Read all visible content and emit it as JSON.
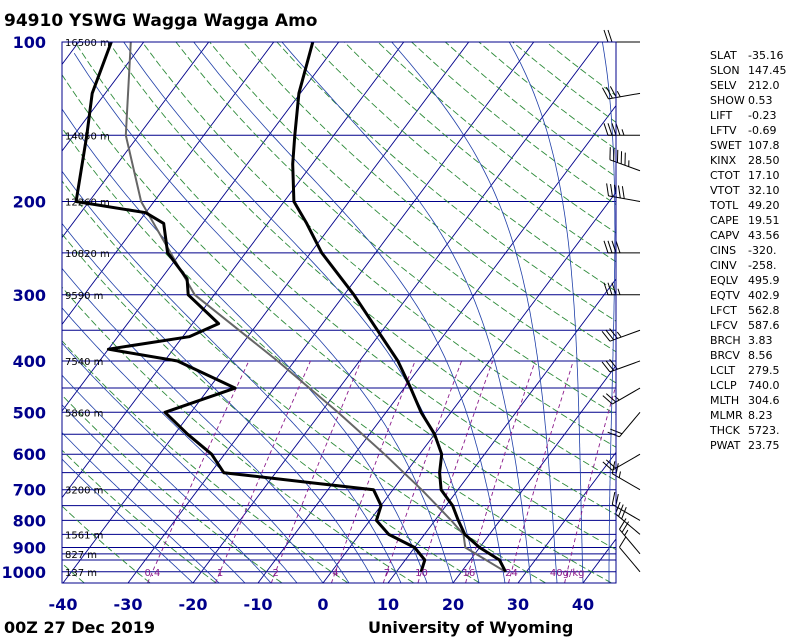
{
  "chart_data": {
    "type": "skewt",
    "title": "94910 YSWG Wagga Wagga Amo",
    "footer_left": "00Z 27 Dec 2019",
    "footer_right": "University of Wyoming",
    "x_ticks": [
      -40,
      -30,
      -20,
      -10,
      0,
      10,
      20,
      30,
      40
    ],
    "p_ticks": [
      100,
      200,
      300,
      400,
      500,
      600,
      700,
      800,
      900,
      1000
    ],
    "height_labels": [
      {
        "p": 100,
        "label": "16500 m"
      },
      {
        "p": 150,
        "label": "14050 m"
      },
      {
        "p": 200,
        "label": "12260 m"
      },
      {
        "p": 250,
        "label": "10820 m"
      },
      {
        "p": 300,
        "label": "9590 m"
      },
      {
        "p": 400,
        "label": "7540 m"
      },
      {
        "p": 500,
        "label": "5860 m"
      },
      {
        "p": 700,
        "label": "3200 m"
      },
      {
        "p": 850,
        "label": "1561 m"
      },
      {
        "p": 925,
        "label": "827 m"
      },
      {
        "p": 1000,
        "label": "137 m"
      }
    ],
    "mixing_ratio_labels": [
      "0.4",
      "1",
      "2",
      "4",
      "7",
      "10",
      "16",
      "24",
      "40g/kg"
    ],
    "temperature": [
      {
        "p": 1000,
        "t": 26.8
      },
      {
        "p": 950,
        "t": 24.5
      },
      {
        "p": 900,
        "t": 20.0
      },
      {
        "p": 850,
        "t": 16.2
      },
      {
        "p": 800,
        "t": 13.6
      },
      {
        "p": 750,
        "t": 11.0
      },
      {
        "p": 700,
        "t": 7.4
      },
      {
        "p": 650,
        "t": 5.2
      },
      {
        "p": 600,
        "t": 3.4
      },
      {
        "p": 550,
        "t": 0.0
      },
      {
        "p": 500,
        "t": -4.6
      },
      {
        "p": 450,
        "t": -9.0
      },
      {
        "p": 400,
        "t": -14.1
      },
      {
        "p": 350,
        "t": -20.8
      },
      {
        "p": 300,
        "t": -28.5
      },
      {
        "p": 250,
        "t": -38.3
      },
      {
        "p": 220,
        "t": -44.0
      },
      {
        "p": 200,
        "t": -48.5
      },
      {
        "p": 170,
        "t": -53.0
      },
      {
        "p": 150,
        "t": -56.0
      },
      {
        "p": 125,
        "t": -60.2
      },
      {
        "p": 100,
        "t": -64.0
      }
    ],
    "dewpoint": [
      {
        "p": 1000,
        "t": 13.8
      },
      {
        "p": 950,
        "t": 13.0
      },
      {
        "p": 900,
        "t": 10.0
      },
      {
        "p": 850,
        "t": 4.5
      },
      {
        "p": 800,
        "t": 1.0
      },
      {
        "p": 750,
        "t": 0.0
      },
      {
        "p": 700,
        "t": -3.0
      },
      {
        "p": 680,
        "t": -13.0
      },
      {
        "p": 650,
        "t": -28.0
      },
      {
        "p": 600,
        "t": -32.0
      },
      {
        "p": 550,
        "t": -38.0
      },
      {
        "p": 500,
        "t": -44.0
      },
      {
        "p": 450,
        "t": -36.0
      },
      {
        "p": 400,
        "t": -48.0
      },
      {
        "p": 380,
        "t": -60.0
      },
      {
        "p": 360,
        "t": -49.0
      },
      {
        "p": 340,
        "t": -46.0
      },
      {
        "p": 300,
        "t": -54.0
      },
      {
        "p": 280,
        "t": -56.0
      },
      {
        "p": 250,
        "t": -62.0
      },
      {
        "p": 220,
        "t": -66.0
      },
      {
        "p": 210,
        "t": -70.0
      },
      {
        "p": 200,
        "t": -82.0
      },
      {
        "p": 150,
        "t": -88.0
      },
      {
        "p": 125,
        "t": -92.0
      },
      {
        "p": 100,
        "t": -95.0
      }
    ],
    "parcel": [
      {
        "p": 1000,
        "t": 26.8
      },
      {
        "p": 900,
        "t": 17.8
      },
      {
        "p": 850,
        "t": 16.0
      },
      {
        "p": 800,
        "t": 12.5
      },
      {
        "p": 750,
        "t": 8.6
      },
      {
        "p": 700,
        "t": 4.4
      },
      {
        "p": 600,
        "t": -5.4
      },
      {
        "p": 500,
        "t": -17.4
      },
      {
        "p": 400,
        "t": -32.6
      },
      {
        "p": 300,
        "t": -53.0
      },
      {
        "p": 200,
        "t": -72.0
      },
      {
        "p": 150,
        "t": -82.0
      },
      {
        "p": 100,
        "t": -92.0
      }
    ],
    "winds": [
      {
        "p": 1000,
        "dir": 320,
        "spd": 10
      },
      {
        "p": 925,
        "dir": 320,
        "spd": 25
      },
      {
        "p": 850,
        "dir": 310,
        "spd": 30
      },
      {
        "p": 800,
        "dir": 300,
        "spd": 20
      },
      {
        "p": 700,
        "dir": 300,
        "spd": 25
      },
      {
        "p": 600,
        "dir": 240,
        "spd": 20
      },
      {
        "p": 500,
        "dir": 220,
        "spd": 20
      },
      {
        "p": 450,
        "dir": 240,
        "spd": 25
      },
      {
        "p": 400,
        "dir": 250,
        "spd": 30
      },
      {
        "p": 350,
        "dir": 250,
        "spd": 35
      },
      {
        "p": 300,
        "dir": 270,
        "spd": 35
      },
      {
        "p": 250,
        "dir": 270,
        "spd": 40
      },
      {
        "p": 200,
        "dir": 280,
        "spd": 50
      },
      {
        "p": 175,
        "dir": 290,
        "spd": 55
      },
      {
        "p": 150,
        "dir": 270,
        "spd": 45
      },
      {
        "p": 125,
        "dir": 260,
        "spd": 35
      },
      {
        "p": 100,
        "dir": 270,
        "spd": 20
      }
    ],
    "indices": [
      {
        "key": "SLAT",
        "value": "-35.16"
      },
      {
        "key": "SLON",
        "value": "147.45"
      },
      {
        "key": "SELV",
        "value": "212.0"
      },
      {
        "key": "SHOW",
        "value": "0.53"
      },
      {
        "key": "LIFT",
        "value": "-0.23"
      },
      {
        "key": "LFTV",
        "value": "-0.69"
      },
      {
        "key": "SWET",
        "value": "107.8"
      },
      {
        "key": "KINX",
        "value": "28.50"
      },
      {
        "key": "CTOT",
        "value": "17.10"
      },
      {
        "key": "VTOT",
        "value": "32.10"
      },
      {
        "key": "TOTL",
        "value": "49.20"
      },
      {
        "key": "CAPE",
        "value": "19.51"
      },
      {
        "key": "CAPV",
        "value": "43.56"
      },
      {
        "key": "CINS",
        "value": "-320."
      },
      {
        "key": "CINV",
        "value": "-258."
      },
      {
        "key": "EQLV",
        "value": "495.9"
      },
      {
        "key": "EQTV",
        "value": "402.9"
      },
      {
        "key": "LFCT",
        "value": "562.8"
      },
      {
        "key": "LFCV",
        "value": "587.6"
      },
      {
        "key": "BRCH",
        "value": "3.83"
      },
      {
        "key": "BRCV",
        "value": "8.56"
      },
      {
        "key": "LCLT",
        "value": "279.5"
      },
      {
        "key": "LCLP",
        "value": "740.0"
      },
      {
        "key": "MLTH",
        "value": "304.6"
      },
      {
        "key": "MLMR",
        "value": "8.23"
      },
      {
        "key": "THCK",
        "value": "5723."
      },
      {
        "key": "PWAT",
        "value": "23.75"
      }
    ],
    "colors": {
      "isobar": "#00008b",
      "isotherm": "#00008b",
      "dry_adiabat": "#2e8b3a",
      "moist_adiabat": "#1f3fa8",
      "mixing_ratio": "#8b1a8b",
      "temperature": "#000000",
      "dewpoint": "#000000",
      "parcel": "#666666",
      "axis_labels": "#00008b"
    }
  }
}
